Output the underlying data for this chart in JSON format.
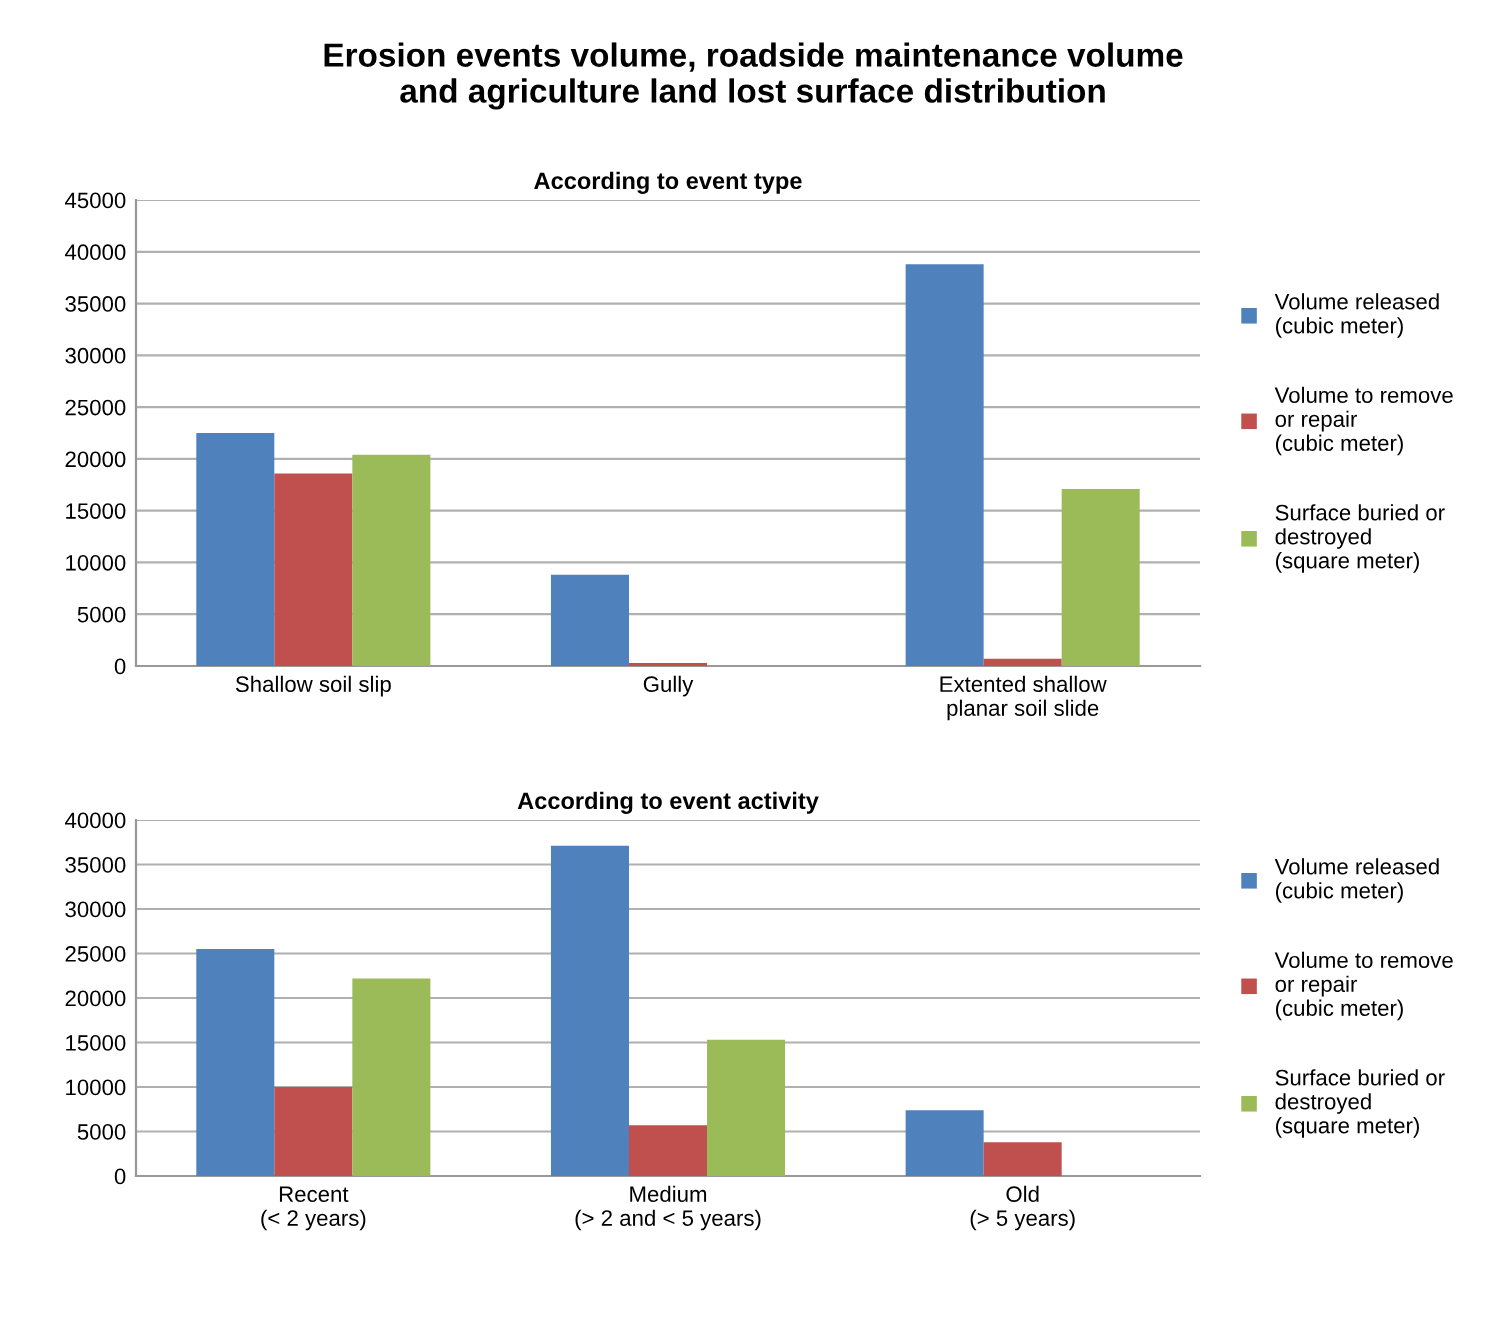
{
  "chart_data": [
    {
      "type": "bar",
      "title": "Erosion events volume, roadside maintenance volume\nand agriculture land lost surface distribution",
      "subtitle": "According to event type",
      "categories": [
        "Shallow soil slip",
        "Gully",
        "Extented shallow\nplanar soil slide"
      ],
      "series": [
        {
          "name": "Volume released\n(cubic meter)",
          "color": "#4f81bd",
          "values": [
            22500,
            8800,
            38800
          ]
        },
        {
          "name": "Volume to remove\nor repair\n(cubic meter)",
          "color": "#c0504d",
          "values": [
            18600,
            300,
            700
          ]
        },
        {
          "name": "Surface buried or\ndestroyed\n(square meter)",
          "color": "#9bbb59",
          "values": [
            20400,
            0,
            17100
          ]
        }
      ],
      "ylim": [
        0,
        45000
      ],
      "yticks": [
        0,
        5000,
        10000,
        15000,
        20000,
        25000,
        30000,
        35000,
        40000,
        45000
      ],
      "grid": "y",
      "legend": "right"
    },
    {
      "type": "bar",
      "title": "According to event activity",
      "categories": [
        "Recent\n(< 2 years)",
        "Medium\n(> 2 and < 5 years)",
        "Old\n(> 5 years)"
      ],
      "series": [
        {
          "name": "Volume released\n(cubic meter)",
          "color": "#4f81bd",
          "values": [
            25500,
            37100,
            7400
          ]
        },
        {
          "name": "Volume to remove\nor repair\n(cubic meter)",
          "color": "#c0504d",
          "values": [
            10000,
            5700,
            3800
          ]
        },
        {
          "name": "Surface buried or\ndestroyed\n(square meter)",
          "color": "#9bbb59",
          "values": [
            22200,
            15300,
            0
          ]
        }
      ],
      "ylim": [
        0,
        40000
      ],
      "yticks": [
        0,
        5000,
        10000,
        15000,
        20000,
        25000,
        30000,
        35000,
        40000
      ],
      "grid": "y",
      "legend": "right"
    }
  ]
}
